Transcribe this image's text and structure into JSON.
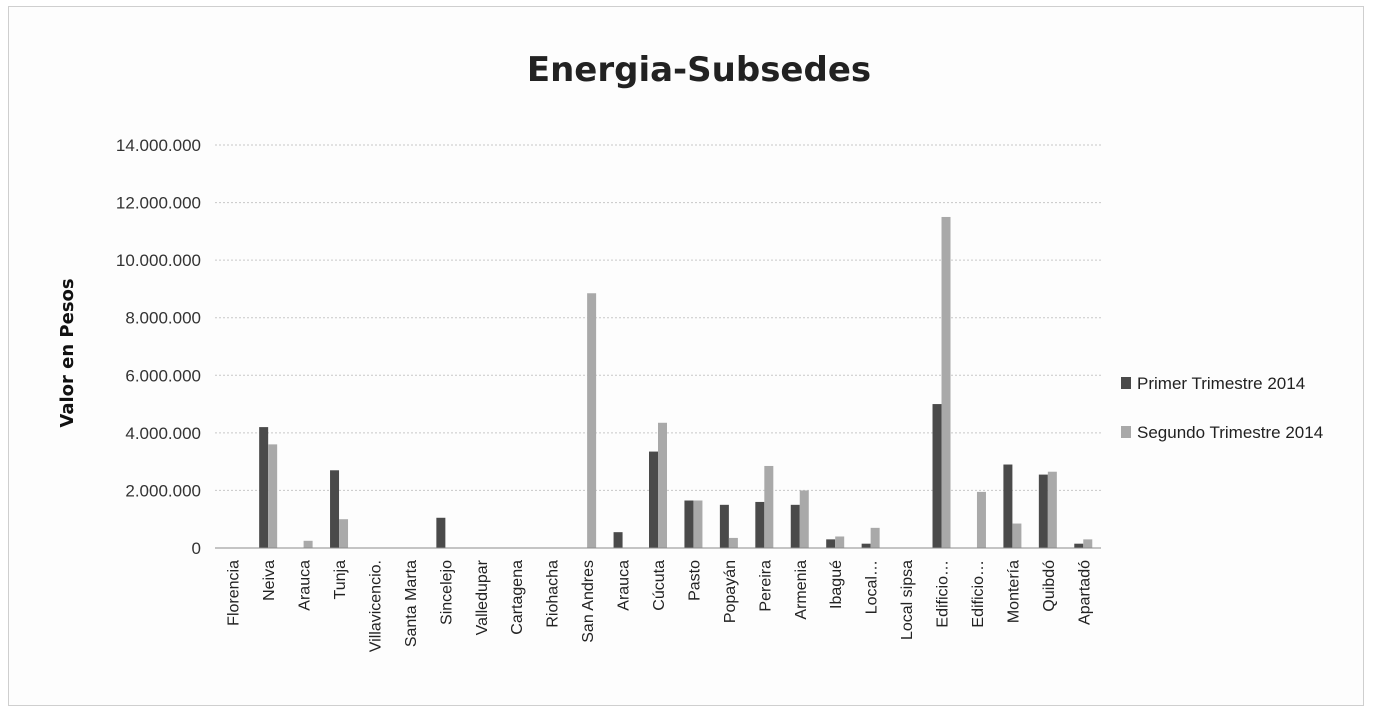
{
  "chart_data": {
    "type": "bar",
    "title": "Energia-Subsedes",
    "ylabel": "Valor en Pesos",
    "xlabel": "",
    "ylim": [
      0,
      14000000
    ],
    "yticks": [
      0,
      2000000,
      4000000,
      6000000,
      8000000,
      10000000,
      12000000,
      14000000
    ],
    "ytick_labels": [
      "0",
      "2.000.000",
      "4.000.000",
      "6.000.000",
      "8.000.000",
      "10.000.000",
      "12.000.000",
      "14.000.000"
    ],
    "grid": true,
    "legend_position": "right",
    "categories": [
      "Florencia",
      "Neiva",
      "Arauca",
      "Tunja",
      "Villavicencio.",
      "Santa Marta",
      "Sincelejo",
      "Valledupar",
      "Cartagena",
      "Riohacha",
      "San Andres",
      "Arauca",
      "Cúcuta",
      "Pasto",
      "Popayán",
      "Pereira",
      "Armenia",
      "Ibagué",
      "Local…",
      "Local sipsa",
      "Edificio…",
      "Edificio…",
      "Montería",
      "Quibdó",
      "Apartadó"
    ],
    "series": [
      {
        "name": "Primer Trimestre 2014",
        "color": "#4a4a4a",
        "values": [
          0,
          4200000,
          0,
          2700000,
          0,
          0,
          1050000,
          0,
          0,
          0,
          0,
          550000,
          3350000,
          1650000,
          1500000,
          1600000,
          1500000,
          300000,
          150000,
          0,
          5000000,
          0,
          2900000,
          2550000,
          150000
        ]
      },
      {
        "name": "Segundo Trimestre 2014",
        "color": "#a9a9a9",
        "values": [
          0,
          3600000,
          250000,
          1000000,
          0,
          0,
          0,
          0,
          0,
          0,
          8850000,
          0,
          4350000,
          1650000,
          350000,
          2850000,
          2000000,
          400000,
          700000,
          0,
          11500000,
          1950000,
          850000,
          2650000,
          300000
        ]
      }
    ]
  }
}
